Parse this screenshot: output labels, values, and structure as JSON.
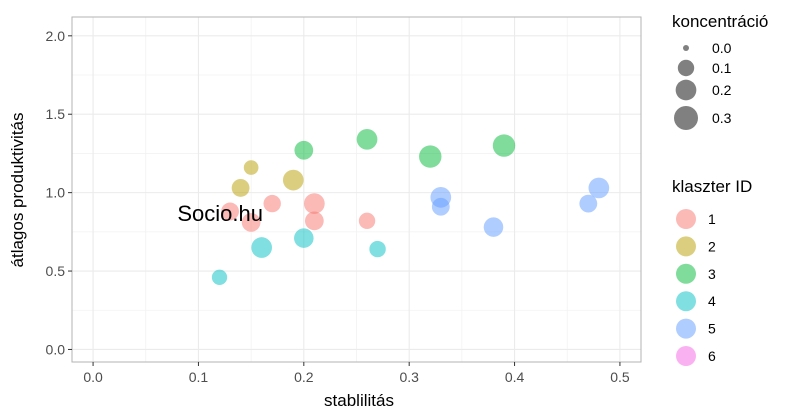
{
  "chart_data": {
    "type": "scatter",
    "xlabel": "stablilitás",
    "ylabel": "átlagos produktivitás",
    "xlim": [
      -0.02,
      0.52
    ],
    "ylim": [
      -0.08,
      2.12
    ],
    "x_ticks": [
      0.0,
      0.1,
      0.2,
      0.3,
      0.4,
      0.5
    ],
    "x_tick_labels": [
      "0.0",
      "0.1",
      "0.2",
      "0.3",
      "0.4",
      "0.5"
    ],
    "y_ticks": [
      0.0,
      0.5,
      1.0,
      1.5,
      2.0
    ],
    "y_tick_labels": [
      "0.0",
      "0.5",
      "1.0",
      "1.5",
      "2.0"
    ],
    "grid": true,
    "annotation": {
      "text": "Socio.hu",
      "x": 0.08,
      "y": 0.87
    },
    "size_legend": {
      "title": "koncentráció",
      "items": [
        {
          "label": "0.0",
          "value": 0.0
        },
        {
          "label": "0.1",
          "value": 0.1
        },
        {
          "label": "0.2",
          "value": 0.2
        },
        {
          "label": "0.3",
          "value": 0.3
        }
      ]
    },
    "color_legend": {
      "title": "klaszter ID",
      "items": [
        {
          "label": "1",
          "color": "#F8766D"
        },
        {
          "label": "2",
          "color": "#B79F00"
        },
        {
          "label": "3",
          "color": "#00BA38"
        },
        {
          "label": "4",
          "color": "#00BFC4"
        },
        {
          "label": "5",
          "color": "#619CFF"
        },
        {
          "label": "6",
          "color": "#F564E3"
        }
      ]
    },
    "series": [
      {
        "cluster": "1",
        "points": [
          {
            "x": 0.13,
            "y": 0.88,
            "size": 0.13
          },
          {
            "x": 0.15,
            "y": 0.81,
            "size": 0.15
          },
          {
            "x": 0.17,
            "y": 0.93,
            "size": 0.12
          },
          {
            "x": 0.21,
            "y": 0.93,
            "size": 0.2
          },
          {
            "x": 0.21,
            "y": 0.82,
            "size": 0.15
          },
          {
            "x": 0.26,
            "y": 0.82,
            "size": 0.1
          }
        ]
      },
      {
        "cluster": "2",
        "points": [
          {
            "x": 0.15,
            "y": 1.16,
            "size": 0.07
          },
          {
            "x": 0.14,
            "y": 1.03,
            "size": 0.13
          },
          {
            "x": 0.19,
            "y": 1.08,
            "size": 0.2
          }
        ]
      },
      {
        "cluster": "3",
        "points": [
          {
            "x": 0.2,
            "y": 1.27,
            "size": 0.15
          },
          {
            "x": 0.26,
            "y": 1.34,
            "size": 0.2
          },
          {
            "x": 0.32,
            "y": 1.23,
            "size": 0.25
          },
          {
            "x": 0.39,
            "y": 1.3,
            "size": 0.25
          }
        ]
      },
      {
        "cluster": "4",
        "points": [
          {
            "x": 0.12,
            "y": 0.46,
            "size": 0.08
          },
          {
            "x": 0.16,
            "y": 0.65,
            "size": 0.2
          },
          {
            "x": 0.2,
            "y": 0.71,
            "size": 0.17
          },
          {
            "x": 0.27,
            "y": 0.64,
            "size": 0.1
          }
        ]
      },
      {
        "cluster": "5",
        "points": [
          {
            "x": 0.33,
            "y": 0.97,
            "size": 0.2
          },
          {
            "x": 0.33,
            "y": 0.91,
            "size": 0.13
          },
          {
            "x": 0.38,
            "y": 0.78,
            "size": 0.17
          },
          {
            "x": 0.47,
            "y": 0.93,
            "size": 0.13
          },
          {
            "x": 0.48,
            "y": 1.03,
            "size": 0.2
          }
        ]
      }
    ]
  }
}
